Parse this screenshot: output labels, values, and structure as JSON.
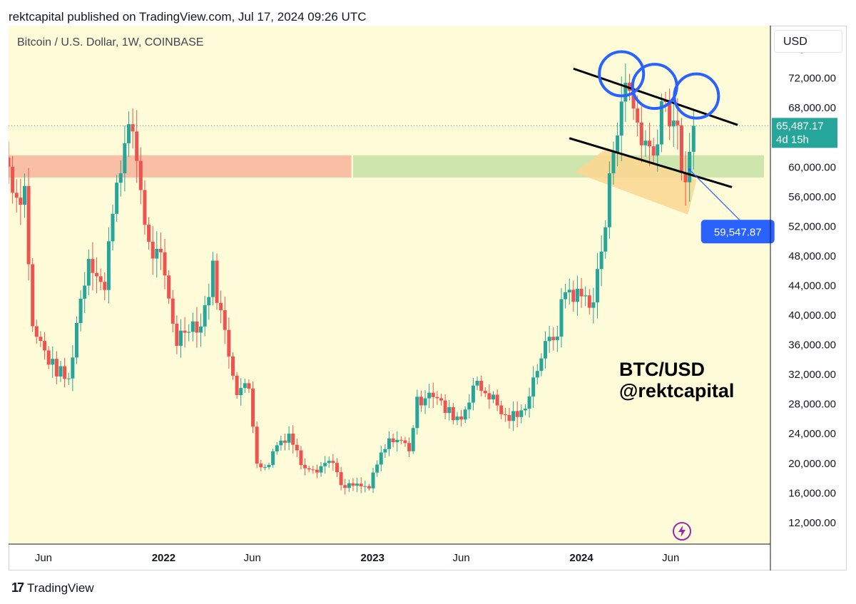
{
  "header": {
    "published_line": "rektcapital published on TradingView.com, Jul 17, 2024 09:26 UTC",
    "symbol_line": "Bitcoin / U.S. Dollar, 1W, COINBASE",
    "currency_button": "USD"
  },
  "watermark": {
    "line1": "BTC/USD",
    "line2": "@rektcapital"
  },
  "footer": {
    "brand_logo": "17",
    "brand": "TradingView"
  },
  "colors": {
    "background": "#fdfbd8",
    "up": "#26a69a",
    "down": "#ef5350",
    "red_zone": "#f7b8a0",
    "green_zone": "#c9e3a9",
    "orange_zone": "#fbd690",
    "circle": "#2962ff",
    "price_label": "#26a69a",
    "callout": "#2962ff"
  },
  "chart_data": {
    "type": "candlestick",
    "timeframe": "1W",
    "x_ticks": [
      "Jun",
      "2022",
      "Jun",
      "2023",
      "Jun",
      "2024",
      "Jun"
    ],
    "y_ticks": [
      "76,000.00",
      "72,000.00",
      "68,000.00",
      "64,000.00",
      "60,000.00",
      "56,000.00",
      "52,000.00",
      "48,000.00",
      "44,000.00",
      "40,000.00",
      "36,000.00",
      "32,000.00",
      "28,000.00",
      "24,000.00",
      "20,000.00",
      "16,000.00",
      "12,000.00"
    ],
    "y_hidden_ticks": [
      "64,000.00"
    ],
    "y_range": [
      9000,
      79000
    ],
    "x_range": [
      "2021-04-05",
      "2024-11-25"
    ],
    "current_price": {
      "value": 65487.17,
      "label": "65,487.17",
      "countdown": "4d 15h"
    },
    "callout": {
      "label": "59,547.87",
      "value": 59547.87,
      "date": "2024-07-08"
    },
    "zones": [
      {
        "name": "red-zone",
        "from": "2021-04-05",
        "to": "2022-11-25",
        "low": 58500,
        "high": 61500
      },
      {
        "name": "green-zone",
        "from": "2022-11-28",
        "to": "2024-11-15",
        "low": 58500,
        "high": 61500
      }
    ],
    "channel_lines": [
      {
        "from": [
          "2023-12-18",
          73200
        ],
        "to": [
          "2024-09-30",
          65600
        ]
      },
      {
        "from": [
          "2023-12-11",
          63800
        ],
        "to": [
          "2024-09-20",
          57200
        ]
      }
    ],
    "circles": [
      {
        "date": "2024-03-11",
        "price": 72500
      },
      {
        "date": "2024-05-08",
        "price": 70800
      },
      {
        "date": "2024-07-20",
        "price": 69500
      }
    ],
    "candle_anchors": [
      [
        "2021-04-05",
        60000
      ],
      [
        "2021-04-19",
        56000
      ],
      [
        "2021-05-03",
        57000
      ],
      [
        "2021-05-17",
        38000
      ],
      [
        "2021-05-31",
        36000
      ],
      [
        "2021-06-21",
        33000
      ],
      [
        "2021-07-19",
        31000
      ],
      [
        "2021-08-02",
        39000
      ],
      [
        "2021-08-23",
        48000
      ],
      [
        "2021-09-06",
        46000
      ],
      [
        "2021-09-20",
        43000
      ],
      [
        "2021-10-04",
        55000
      ],
      [
        "2021-10-18",
        61000
      ],
      [
        "2021-11-08",
        65000
      ],
      [
        "2021-11-22",
        57000
      ],
      [
        "2021-12-06",
        49000
      ],
      [
        "2021-12-27",
        47000
      ],
      [
        "2022-01-10",
        42000
      ],
      [
        "2022-01-24",
        36500
      ],
      [
        "2022-02-14",
        39000
      ],
      [
        "2022-03-07",
        38500
      ],
      [
        "2022-03-28",
        46000
      ],
      [
        "2022-04-11",
        40000
      ],
      [
        "2022-05-09",
        30000
      ],
      [
        "2022-05-30",
        30000
      ],
      [
        "2022-06-13",
        20500
      ],
      [
        "2022-06-27",
        19000
      ],
      [
        "2022-07-18",
        22500
      ],
      [
        "2022-08-08",
        24000
      ],
      [
        "2022-08-29",
        20000
      ],
      [
        "2022-09-26",
        19300
      ],
      [
        "2022-10-24",
        20500
      ],
      [
        "2022-11-07",
        16500
      ],
      [
        "2022-11-28",
        16900
      ],
      [
        "2022-12-26",
        16600
      ],
      [
        "2023-01-16",
        21000
      ],
      [
        "2023-02-06",
        23500
      ],
      [
        "2023-03-06",
        22000
      ],
      [
        "2023-03-20",
        28000
      ],
      [
        "2023-04-10",
        30000
      ],
      [
        "2023-05-08",
        27000
      ],
      [
        "2023-06-05",
        26000
      ],
      [
        "2023-06-26",
        30500
      ],
      [
        "2023-07-24",
        29300
      ],
      [
        "2023-08-21",
        26000
      ],
      [
        "2023-09-18",
        26500
      ],
      [
        "2023-10-23",
        34500
      ],
      [
        "2023-11-20",
        38000
      ],
      [
        "2023-12-04",
        43500
      ],
      [
        "2023-12-25",
        42500
      ],
      [
        "2024-01-22",
        42000
      ],
      [
        "2024-02-12",
        52000
      ],
      [
        "2024-02-26",
        63000
      ],
      [
        "2024-03-11",
        69500
      ],
      [
        "2024-03-25",
        70000
      ],
      [
        "2024-04-15",
        64000
      ],
      [
        "2024-05-06",
        61500
      ],
      [
        "2024-05-20",
        69000
      ],
      [
        "2024-06-10",
        66500
      ],
      [
        "2024-06-24",
        60500
      ],
      [
        "2024-07-01",
        56500
      ],
      [
        "2024-07-08",
        60500
      ],
      [
        "2024-07-15",
        65487
      ]
    ]
  }
}
